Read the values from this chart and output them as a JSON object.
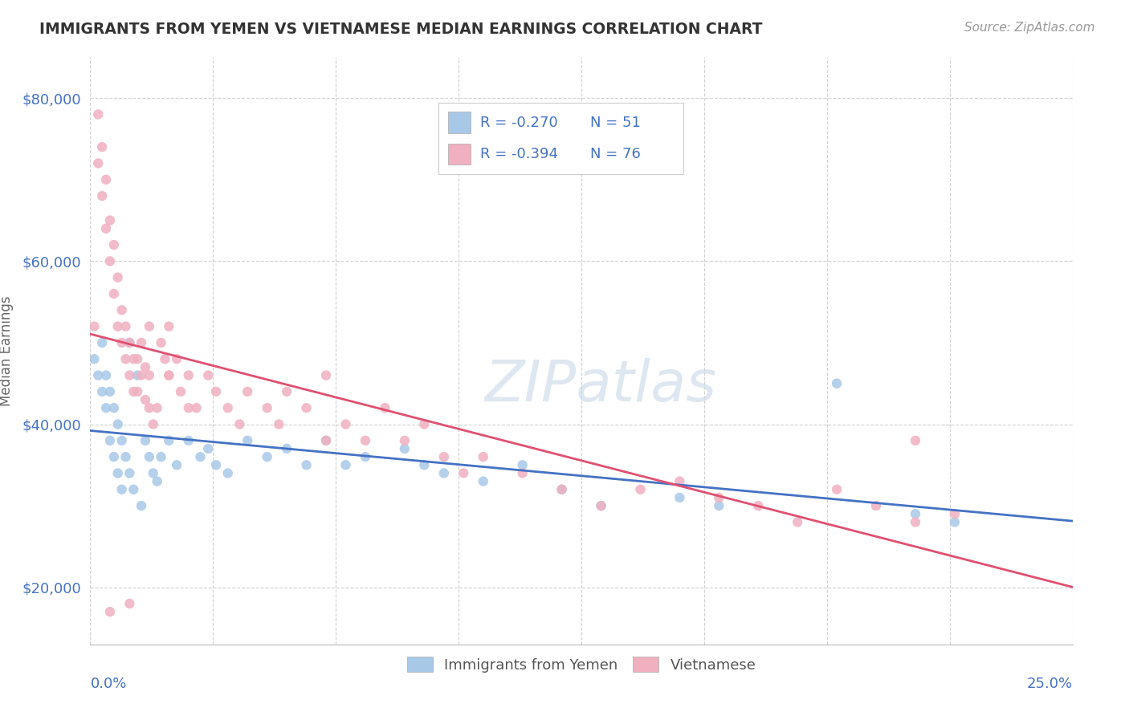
{
  "title": "IMMIGRANTS FROM YEMEN VS VIETNAMESE MEDIAN EARNINGS CORRELATION CHART",
  "source": "Source: ZipAtlas.com",
  "ylabel": "Median Earnings",
  "xmin": 0.0,
  "xmax": 0.25,
  "ymin": 13000,
  "ymax": 85000,
  "yticks": [
    20000,
    40000,
    60000,
    80000
  ],
  "ytick_labels": [
    "$20,000",
    "$40,000",
    "$60,000",
    "$80,000"
  ],
  "watermark": "ZIPatlas",
  "series": [
    {
      "name": "Immigrants from Yemen",
      "R": -0.27,
      "N": 51,
      "color": "#a8c8e8",
      "line_color": "#4472c4",
      "x": [
        0.001,
        0.002,
        0.003,
        0.003,
        0.004,
        0.004,
        0.005,
        0.005,
        0.006,
        0.006,
        0.007,
        0.007,
        0.008,
        0.008,
        0.009,
        0.01,
        0.01,
        0.011,
        0.012,
        0.013,
        0.014,
        0.015,
        0.016,
        0.017,
        0.018,
        0.02,
        0.022,
        0.025,
        0.028,
        0.03,
        0.032,
        0.035,
        0.04,
        0.045,
        0.05,
        0.055,
        0.06,
        0.065,
        0.07,
        0.08,
        0.085,
        0.09,
        0.1,
        0.11,
        0.12,
        0.13,
        0.15,
        0.16,
        0.19,
        0.21,
        0.22
      ],
      "y": [
        48000,
        46000,
        44000,
        50000,
        42000,
        46000,
        38000,
        44000,
        36000,
        42000,
        34000,
        40000,
        32000,
        38000,
        36000,
        34000,
        50000,
        32000,
        46000,
        30000,
        38000,
        36000,
        34000,
        33000,
        36000,
        38000,
        35000,
        38000,
        36000,
        37000,
        35000,
        34000,
        38000,
        36000,
        37000,
        35000,
        38000,
        35000,
        36000,
        37000,
        35000,
        34000,
        33000,
        35000,
        32000,
        30000,
        31000,
        30000,
        45000,
        29000,
        28000
      ]
    },
    {
      "name": "Vietnamese",
      "R": -0.394,
      "N": 76,
      "color": "#f0b0c0",
      "line_color": "#e05070",
      "x": [
        0.001,
        0.002,
        0.002,
        0.003,
        0.003,
        0.004,
        0.004,
        0.005,
        0.005,
        0.006,
        0.006,
        0.007,
        0.007,
        0.008,
        0.008,
        0.009,
        0.009,
        0.01,
        0.01,
        0.011,
        0.011,
        0.012,
        0.012,
        0.013,
        0.013,
        0.014,
        0.014,
        0.015,
        0.015,
        0.016,
        0.017,
        0.018,
        0.019,
        0.02,
        0.02,
        0.022,
        0.023,
        0.025,
        0.027,
        0.03,
        0.032,
        0.035,
        0.038,
        0.04,
        0.045,
        0.048,
        0.05,
        0.055,
        0.06,
        0.065,
        0.07,
        0.075,
        0.08,
        0.085,
        0.09,
        0.095,
        0.1,
        0.11,
        0.12,
        0.13,
        0.14,
        0.15,
        0.16,
        0.17,
        0.18,
        0.19,
        0.2,
        0.21,
        0.005,
        0.01,
        0.015,
        0.02,
        0.025,
        0.06,
        0.21,
        0.22
      ],
      "y": [
        52000,
        78000,
        72000,
        68000,
        74000,
        64000,
        70000,
        60000,
        65000,
        56000,
        62000,
        52000,
        58000,
        50000,
        54000,
        48000,
        52000,
        46000,
        50000,
        44000,
        48000,
        48000,
        44000,
        46000,
        50000,
        43000,
        47000,
        42000,
        46000,
        40000,
        42000,
        50000,
        48000,
        46000,
        52000,
        48000,
        44000,
        46000,
        42000,
        46000,
        44000,
        42000,
        40000,
        44000,
        42000,
        40000,
        44000,
        42000,
        46000,
        40000,
        38000,
        42000,
        38000,
        40000,
        36000,
        34000,
        36000,
        34000,
        32000,
        30000,
        32000,
        33000,
        31000,
        30000,
        28000,
        32000,
        30000,
        28000,
        17000,
        18000,
        52000,
        46000,
        42000,
        38000,
        38000,
        29000
      ]
    }
  ],
  "background_color": "#ffffff",
  "grid_color": "#cccccc",
  "title_color": "#333333",
  "axis_label_color": "#4472c4",
  "source_color": "#999999"
}
